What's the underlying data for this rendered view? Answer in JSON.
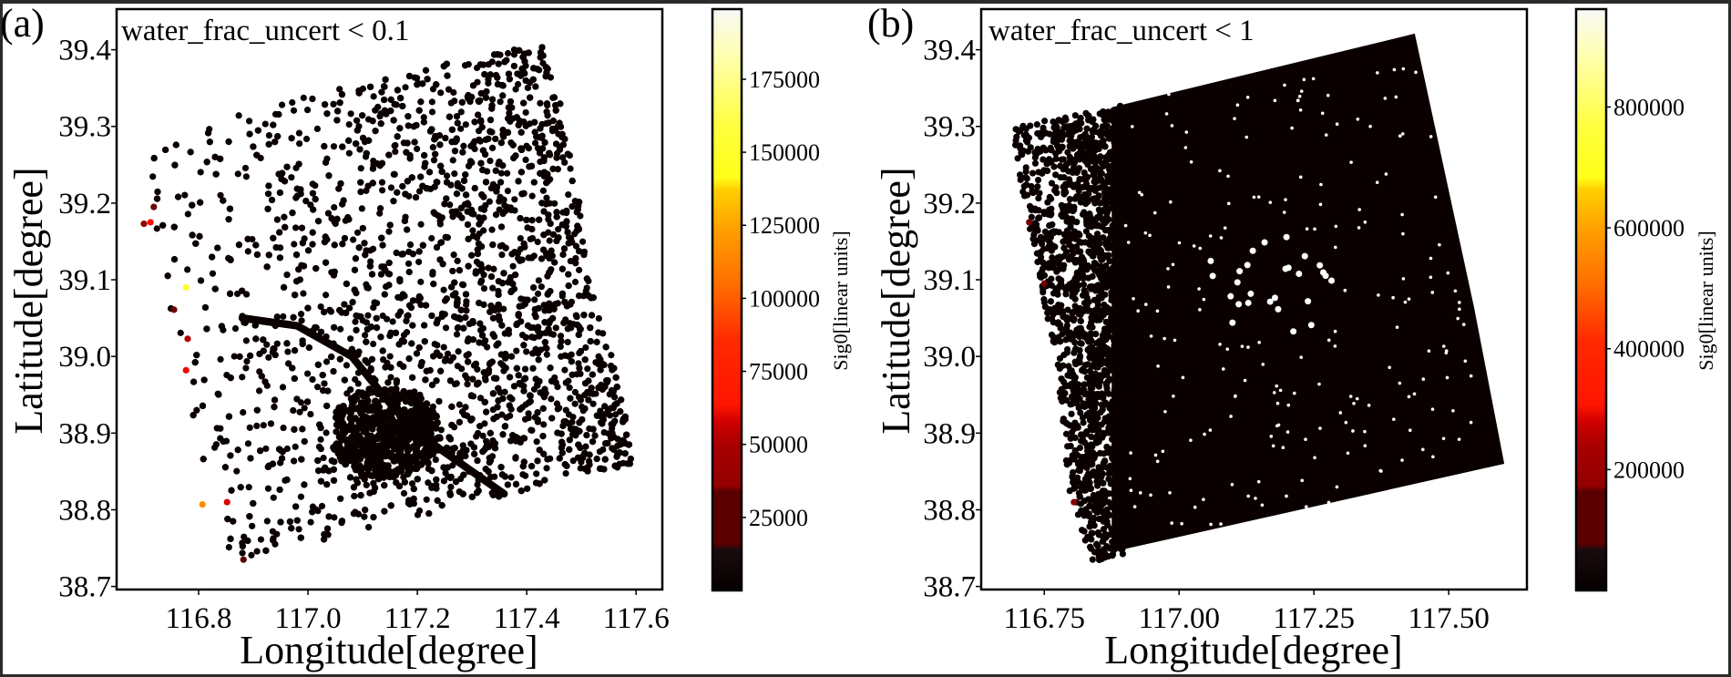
{
  "chart_data": [
    {
      "type": "scatter",
      "panel_label": "(a)",
      "annotation": "water_frac_uncert < 0.1",
      "xlabel": "Longitude[degree]",
      "ylabel": "Latitude[degree]",
      "xlim": [
        116.65,
        117.648
      ],
      "ylim": [
        38.696,
        39.453
      ],
      "xticks": [
        116.8,
        117.0,
        117.2,
        117.4,
        117.6
      ],
      "xtick_labels": [
        "116.8",
        "117.0",
        "117.2",
        "117.4",
        "117.6"
      ],
      "yticks": [
        38.7,
        38.8,
        38.9,
        39.0,
        39.1,
        39.2,
        39.3,
        39.4
      ],
      "ytick_labels": [
        "38.7",
        "38.8",
        "38.9",
        "39.0",
        "39.1",
        "39.2",
        "39.3",
        "39.4"
      ],
      "grid": false,
      "colormap": "hot",
      "colorbar": {
        "label": "Sig0[linear units]",
        "range": [
          0,
          199000
        ],
        "ticks": [
          25000,
          50000,
          75000,
          100000,
          125000,
          150000,
          175000
        ],
        "tick_labels": [
          "25000",
          "50000",
          "75000",
          "100000",
          "125000",
          "150000",
          "175000"
        ]
      },
      "point_density": "sparse",
      "footprint": [
        [
          116.7,
          39.26
        ],
        [
          116.88,
          39.32
        ],
        [
          117.44,
          39.415
        ],
        [
          117.53,
          39.08
        ],
        [
          117.6,
          38.86
        ],
        [
          116.85,
          38.73
        ],
        [
          116.77,
          38.98
        ]
      ],
      "highlighted_points": [
        {
          "lon": 116.7,
          "lat": 39.173,
          "value": 40000
        },
        {
          "lon": 116.712,
          "lat": 39.175,
          "value": 75000
        },
        {
          "lon": 116.718,
          "lat": 39.195,
          "value": 30000
        },
        {
          "lon": 116.777,
          "lat": 39.09,
          "value": 150000
        },
        {
          "lon": 116.755,
          "lat": 39.061,
          "value": 30000
        },
        {
          "lon": 116.78,
          "lat": 39.023,
          "value": 50000
        },
        {
          "lon": 116.777,
          "lat": 38.982,
          "value": 70000
        },
        {
          "lon": 116.807,
          "lat": 38.807,
          "value": 110000
        },
        {
          "lon": 116.852,
          "lat": 38.81,
          "value": 60000
        },
        {
          "lon": 116.882,
          "lat": 38.735,
          "value": 25000
        }
      ],
      "background_value": 3000
    },
    {
      "type": "scatter",
      "panel_label": "(b)",
      "annotation": "water_frac_uncert < 1",
      "xlabel": "Longitude[degree]",
      "ylabel": "Latitude[degree]",
      "xlim": [
        116.633,
        117.645
      ],
      "ylim": [
        38.696,
        39.453
      ],
      "xticks": [
        116.75,
        117.0,
        117.25,
        117.5
      ],
      "xtick_labels": [
        "116.75",
        "117.00",
        "117.25",
        "117.50"
      ],
      "yticks": [
        38.7,
        38.8,
        38.9,
        39.0,
        39.1,
        39.2,
        39.3,
        39.4
      ],
      "ytick_labels": [
        "38.7",
        "38.8",
        "38.9",
        "39.0",
        "39.1",
        "39.2",
        "39.3",
        "39.4"
      ],
      "grid": false,
      "colormap": "hot",
      "colorbar": {
        "label": "Sig0[linear units]",
        "range": [
          0,
          962000
        ],
        "ticks": [
          200000,
          400000,
          600000,
          800000
        ],
        "tick_labels": [
          "200000",
          "400000",
          "600000",
          "800000"
        ]
      },
      "point_density": "dense",
      "footprint": [
        [
          116.684,
          39.299
        ],
        [
          116.88,
          39.325
        ],
        [
          117.437,
          39.421
        ],
        [
          117.547,
          39.064
        ],
        [
          117.603,
          38.86
        ],
        [
          116.84,
          38.732
        ],
        [
          116.796,
          38.82
        ],
        [
          116.774,
          38.988
        ]
      ],
      "solid_region": [
        [
          116.875,
          39.325
        ],
        [
          117.437,
          39.421
        ],
        [
          117.547,
          39.064
        ],
        [
          117.603,
          38.86
        ],
        [
          116.875,
          38.745
        ]
      ],
      "highlighted_points": [
        {
          "lon": 116.722,
          "lat": 39.175,
          "value": 150000
        },
        {
          "lon": 116.75,
          "lat": 39.095,
          "value": 150000
        },
        {
          "lon": 116.805,
          "lat": 38.81,
          "value": 180000
        }
      ],
      "background_value": 10000
    }
  ]
}
